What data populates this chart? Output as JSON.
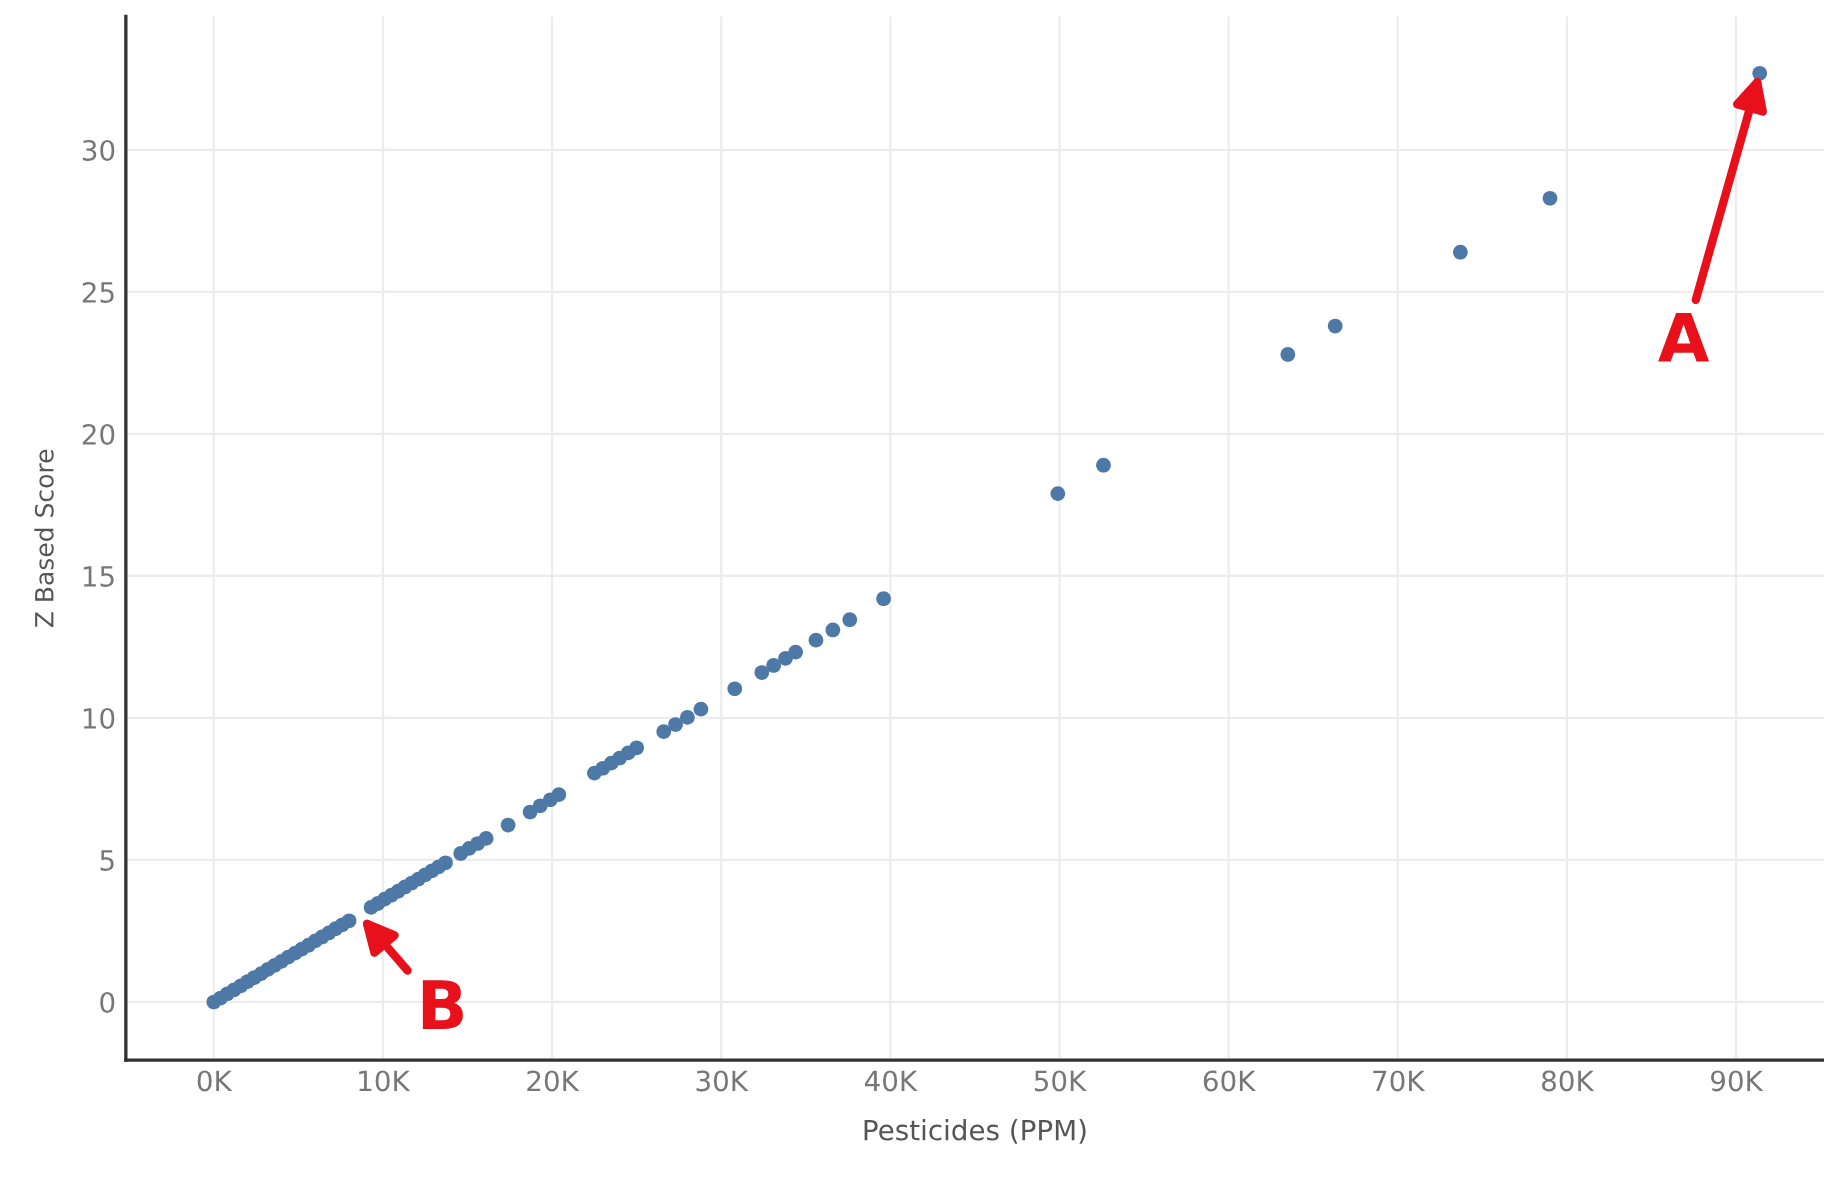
{
  "chart_data": {
    "type": "scatter",
    "xlabel": "Pesticides (PPM)",
    "ylabel": "Z Based Score",
    "series": [
      {
        "color": "#4e79a7",
        "x": [
          0,
          400,
          800,
          1200,
          1600,
          2000,
          2400,
          2800,
          3200,
          3600,
          4000,
          4400,
          4800,
          5200,
          5600,
          6000,
          6400,
          6800,
          7200,
          7600,
          8000,
          9300,
          9700,
          10100,
          10500,
          10900,
          11300,
          11700,
          12100,
          12500,
          12900,
          13300,
          13700,
          14600,
          15100,
          15600,
          16100,
          17400,
          18700,
          19300,
          19900,
          20400,
          22500,
          23000,
          23500,
          24000,
          24500,
          25000,
          26600,
          27300,
          28000,
          28800,
          30800,
          32400,
          33100,
          33800,
          34400,
          35600,
          36600,
          37600,
          39600,
          49900,
          52600,
          63500,
          66300,
          73700,
          79000,
          91400
        ],
        "values": [
          0,
          0.14,
          0.29,
          0.43,
          0.57,
          0.72,
          0.86,
          1.0,
          1.15,
          1.29,
          1.43,
          1.58,
          1.72,
          1.86,
          2.0,
          2.15,
          2.29,
          2.43,
          2.58,
          2.72,
          2.86,
          3.33,
          3.47,
          3.62,
          3.76,
          3.9,
          4.05,
          4.19,
          4.33,
          4.48,
          4.62,
          4.76,
          4.9,
          5.23,
          5.41,
          5.58,
          5.76,
          6.23,
          6.69,
          6.91,
          7.12,
          7.3,
          8.06,
          8.23,
          8.41,
          8.59,
          8.77,
          8.95,
          9.52,
          9.77,
          10.02,
          10.31,
          11.03,
          11.6,
          11.85,
          12.1,
          12.32,
          12.74,
          13.1,
          13.46,
          14.2,
          17.9,
          18.9,
          22.8,
          23.8,
          26.4,
          28.3,
          32.7
        ]
      }
    ],
    "marker": "circle",
    "xlim": [
      -5200,
      95200
    ],
    "ylim": [
      -2.05,
      34.7
    ],
    "xticks": [
      {
        "value": 0,
        "label": "0K"
      },
      {
        "value": 10000,
        "label": "10K"
      },
      {
        "value": 20000,
        "label": "20K"
      },
      {
        "value": 30000,
        "label": "30K"
      },
      {
        "value": 40000,
        "label": "40K"
      },
      {
        "value": 50000,
        "label": "50K"
      },
      {
        "value": 60000,
        "label": "60K"
      },
      {
        "value": 70000,
        "label": "70K"
      },
      {
        "value": 80000,
        "label": "80K"
      },
      {
        "value": 90000,
        "label": "90K"
      }
    ],
    "yticks": [
      0,
      5,
      10,
      15,
      20,
      25,
      30
    ],
    "grid": true,
    "annotations": [
      {
        "text": "A",
        "x": 91400,
        "y": 32.7
      },
      {
        "text": "B",
        "x": 8700,
        "y": 3.0
      }
    ]
  }
}
